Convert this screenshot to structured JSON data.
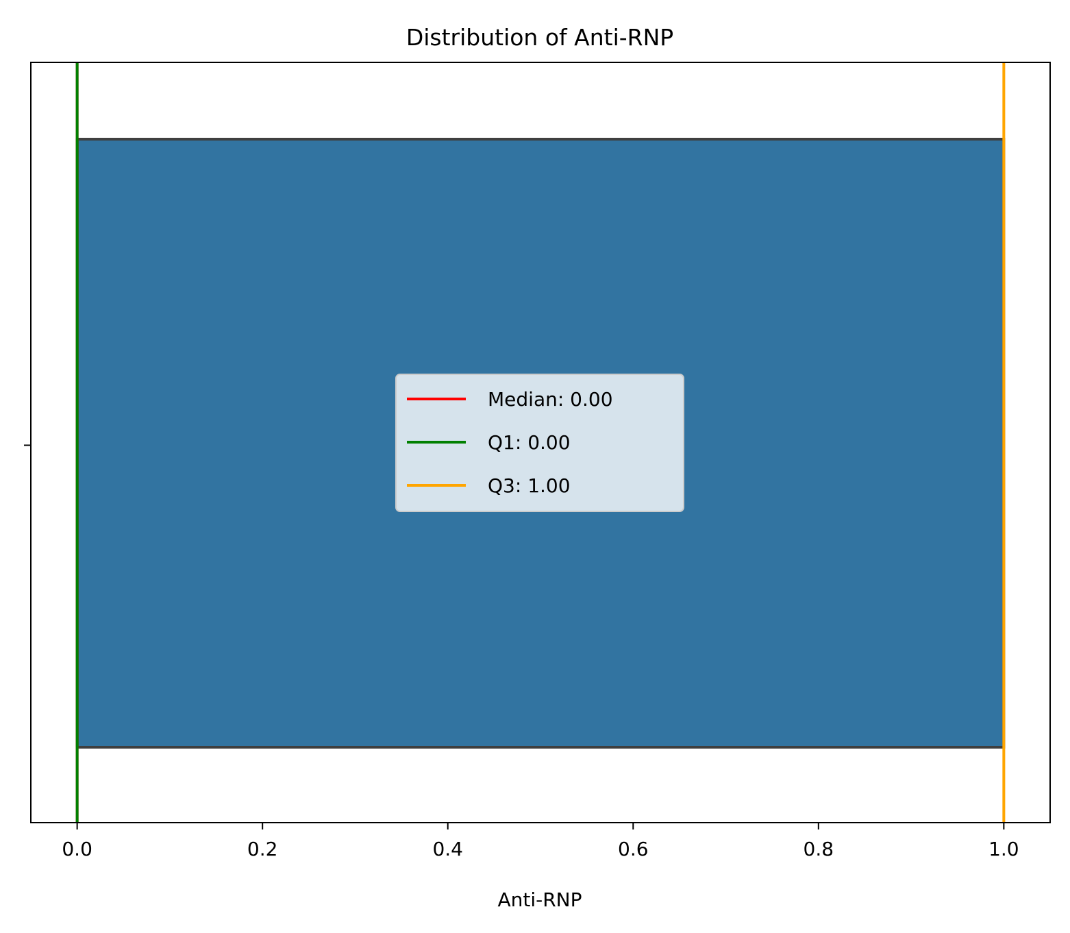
{
  "chart_data": {
    "type": "box",
    "title": "Distribution of Anti-RNP",
    "xlabel": "Anti-RNP",
    "ylabel": "",
    "xlim": [
      -0.05,
      1.05
    ],
    "x_ticks": [
      0.0,
      0.2,
      0.4,
      0.6,
      0.8,
      1.0
    ],
    "x_tick_labels": [
      "0.0",
      "0.2",
      "0.4",
      "0.6",
      "0.8",
      "1.0"
    ],
    "grid": false,
    "legend_position": "center",
    "box": {
      "min": 0.0,
      "q1": 0.0,
      "median": 0.0,
      "q3": 1.0,
      "max": 1.0,
      "color": "#3274a1",
      "edge_color": "#3f3f3f"
    },
    "reference_lines": [
      {
        "label": "Median: 0.00",
        "x": 0.0,
        "color": "#ff0000"
      },
      {
        "label": "Q1: 0.00",
        "x": 0.0,
        "color": "#008000"
      },
      {
        "label": "Q3: 1.00",
        "x": 1.0,
        "color": "#ffa500"
      }
    ]
  }
}
